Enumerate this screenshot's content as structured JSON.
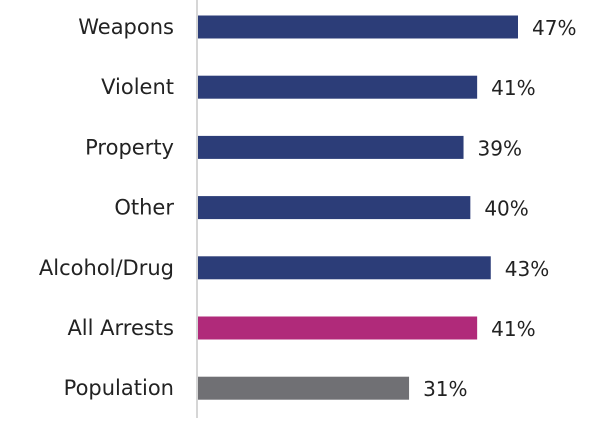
{
  "chart_data": {
    "type": "bar",
    "orientation": "horizontal",
    "categories": [
      "Weapons",
      "Violent",
      "Property",
      "Other",
      "Alcohol/Drug",
      "All Arrests",
      "Population"
    ],
    "values": [
      47,
      41,
      39,
      40,
      43,
      41,
      31
    ],
    "value_labels": [
      "47%",
      "41%",
      "39%",
      "40%",
      "43%",
      "41%",
      "31%"
    ],
    "bar_colors": [
      "#2c3d78",
      "#2c3d78",
      "#2c3d78",
      "#2c3d78",
      "#2c3d78",
      "#b02a7a",
      "#707074"
    ],
    "xlim": [
      0,
      50
    ],
    "grid": false,
    "legend": "none",
    "title": "",
    "xlabel": "",
    "ylabel": ""
  }
}
